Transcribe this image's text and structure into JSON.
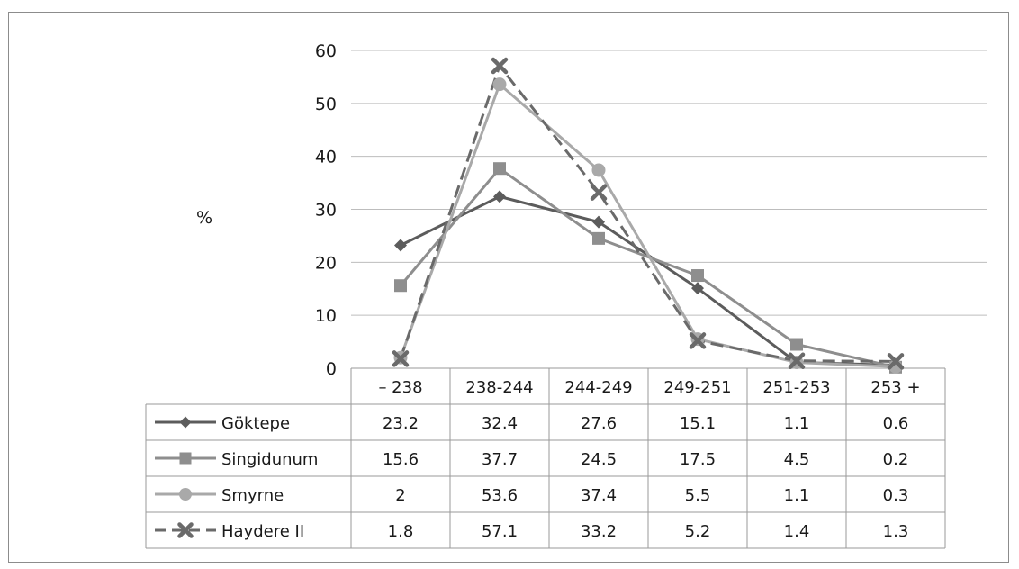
{
  "chart_data": {
    "type": "line",
    "title": "",
    "xlabel": "",
    "ylabel": "%",
    "ylim": [
      0,
      60
    ],
    "yticks": [
      0,
      10,
      20,
      30,
      40,
      50,
      60
    ],
    "grid": true,
    "legend": "data-table-left",
    "categories": [
      "– 238",
      "238-244",
      "244-249",
      "249-251",
      "251-253",
      "253 +"
    ],
    "series": [
      {
        "name": "Göktepe",
        "values": [
          23.2,
          32.4,
          27.6,
          15.1,
          1.1,
          0.6
        ],
        "values_text": [
          "23.2",
          "32.4",
          "27.6",
          "15.1",
          "1.1",
          "0.6"
        ],
        "color": "#5c5c5c",
        "marker": "diamond",
        "dash": false
      },
      {
        "name": "Singidunum",
        "values": [
          15.6,
          37.7,
          24.5,
          17.5,
          4.5,
          0.2
        ],
        "values_text": [
          "15.6",
          "37.7",
          "24.5",
          "17.5",
          "4.5",
          "0.2"
        ],
        "color": "#8e8e8e",
        "marker": "square",
        "dash": false
      },
      {
        "name": "Smyrne",
        "values": [
          2,
          53.6,
          37.4,
          5.5,
          1.1,
          0.3
        ],
        "values_text": [
          "2",
          "53.6",
          "37.4",
          "5.5",
          "1.1",
          "0.3"
        ],
        "color": "#a9a9a9",
        "marker": "circle",
        "dash": false
      },
      {
        "name": "Haydere II",
        "values": [
          1.8,
          57.1,
          33.2,
          5.2,
          1.4,
          1.3
        ],
        "values_text": [
          "1.8",
          "57.1",
          "33.2",
          "5.2",
          "1.4",
          "1.3"
        ],
        "color": "#6a6a6a",
        "marker": "x",
        "dash": true
      }
    ]
  }
}
